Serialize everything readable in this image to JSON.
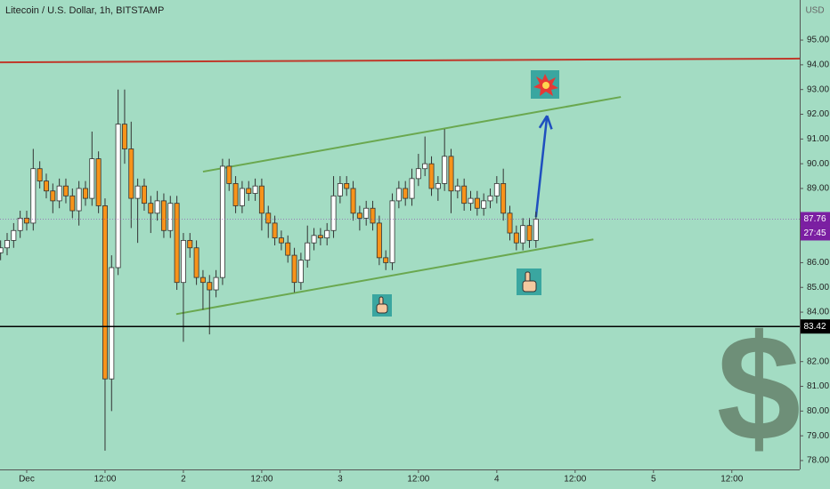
{
  "chart_data": {
    "type": "candlestick",
    "title": "Litecoin / U.S. Dollar, 1h, BITSTAMP",
    "currency": "USD",
    "countdown": "27:45",
    "background": "#a3dcc3",
    "up_color": "#ffffff",
    "down_color": "#f7931a",
    "wick_color": "#333333",
    "x": [
      -4,
      -3,
      -2,
      -1,
      0,
      1,
      2,
      3,
      4,
      5,
      6,
      7,
      8,
      9,
      10,
      11,
      12,
      13,
      14,
      15,
      16,
      17,
      18,
      19,
      20,
      21,
      22,
      23,
      24,
      25,
      26,
      27,
      28,
      29,
      30,
      31,
      32,
      33,
      34,
      35,
      36,
      37,
      38,
      39,
      40,
      41,
      42,
      43,
      44,
      45,
      46,
      47,
      48,
      49,
      50,
      51,
      52,
      53,
      54,
      55,
      56,
      57,
      58,
      59,
      60,
      61,
      62,
      63,
      64,
      65,
      66,
      67,
      68,
      69,
      70,
      71,
      72,
      73,
      74,
      75,
      76,
      77,
      78
    ],
    "open": [
      86.4,
      86.6,
      86.9,
      87.3,
      87.8,
      87.6,
      89.8,
      89.3,
      88.9,
      88.5,
      89.1,
      88.7,
      88.1,
      89.0,
      88.6,
      90.2,
      88.3,
      81.3,
      85.8,
      91.6,
      90.6,
      88.6,
      89.1,
      88.4,
      88.0,
      88.5,
      87.3,
      88.4,
      85.2,
      86.9,
      86.6,
      85.4,
      85.2,
      84.9,
      85.4,
      89.9,
      89.2,
      88.3,
      89.0,
      88.8,
      89.1,
      88.0,
      87.6,
      87.0,
      86.8,
      86.3,
      85.2,
      86.1,
      86.8,
      87.1,
      87.0,
      87.3,
      88.7,
      89.2,
      89.0,
      88.0,
      87.8,
      88.2,
      87.6,
      86.2,
      86.0,
      88.5,
      89.0,
      88.6,
      89.4,
      89.8,
      90.0,
      89.0,
      89.2,
      90.3,
      88.9,
      89.1,
      88.4,
      88.6,
      88.2,
      88.5,
      88.7,
      89.2,
      88.0,
      87.2,
      86.8,
      87.5,
      86.9
    ],
    "high": [
      86.9,
      87.2,
      87.6,
      88.1,
      88.1,
      90.6,
      90.1,
      89.6,
      89.2,
      89.4,
      89.4,
      89.0,
      89.3,
      89.3,
      91.3,
      90.5,
      88.6,
      86.3,
      93.0,
      93.0,
      91.7,
      89.4,
      89.4,
      88.7,
      88.9,
      88.8,
      88.7,
      88.7,
      87.2,
      87.2,
      86.9,
      85.7,
      85.5,
      85.7,
      90.2,
      90.2,
      89.5,
      89.3,
      89.3,
      89.4,
      89.4,
      88.3,
      87.9,
      87.3,
      87.1,
      86.6,
      86.4,
      87.5,
      87.4,
      87.4,
      87.6,
      89.5,
      89.5,
      89.5,
      89.3,
      88.3,
      88.5,
      88.5,
      87.9,
      86.5,
      88.8,
      89.3,
      89.3,
      89.8,
      90.4,
      91.1,
      90.3,
      89.5,
      91.4,
      90.6,
      89.4,
      89.4,
      88.9,
      88.9,
      88.8,
      89.0,
      89.5,
      89.8,
      88.3,
      87.5,
      87.8,
      87.8,
      88.06
    ],
    "low": [
      86.1,
      86.3,
      86.6,
      87.0,
      87.3,
      87.3,
      89.0,
      88.6,
      88.0,
      88.2,
      88.4,
      87.8,
      87.5,
      88.3,
      88.3,
      88.0,
      78.4,
      80.0,
      85.5,
      90.0,
      87.4,
      86.8,
      88.1,
      87.2,
      87.7,
      87.0,
      87.0,
      84.9,
      82.8,
      86.2,
      85.1,
      84.1,
      83.1,
      84.6,
      85.1,
      88.9,
      88.0,
      88.0,
      88.5,
      88.5,
      87.3,
      87.0,
      86.7,
      86.5,
      86.0,
      84.8,
      84.9,
      85.8,
      86.5,
      86.7,
      86.7,
      87.0,
      88.4,
      88.7,
      87.7,
      87.3,
      87.5,
      87.3,
      85.9,
      85.7,
      85.7,
      88.2,
      88.3,
      88.3,
      89.1,
      89.5,
      88.7,
      88.5,
      88.9,
      88.0,
      88.6,
      88.1,
      88.1,
      87.9,
      87.9,
      88.2,
      88.4,
      87.7,
      86.9,
      86.5,
      86.5,
      86.6,
      86.6
    ],
    "close": [
      86.6,
      86.9,
      87.3,
      87.8,
      87.6,
      89.8,
      89.3,
      88.9,
      88.5,
      89.1,
      88.7,
      88.1,
      89.0,
      88.6,
      90.2,
      88.3,
      81.3,
      85.8,
      91.6,
      90.6,
      88.6,
      89.1,
      88.4,
      88.0,
      88.5,
      87.3,
      88.4,
      85.2,
      86.9,
      86.6,
      85.4,
      85.2,
      84.9,
      85.4,
      89.9,
      89.2,
      88.3,
      89.0,
      88.8,
      89.1,
      88.0,
      87.6,
      87.0,
      86.8,
      86.3,
      85.2,
      86.1,
      86.8,
      87.1,
      87.0,
      87.3,
      88.7,
      89.2,
      89.0,
      88.0,
      87.8,
      88.2,
      87.6,
      86.2,
      86.0,
      88.5,
      89.0,
      88.6,
      89.4,
      89.8,
      90.0,
      89.0,
      89.2,
      90.3,
      88.9,
      89.1,
      88.4,
      88.6,
      88.2,
      88.5,
      88.7,
      89.2,
      88.0,
      87.2,
      86.8,
      87.5,
      86.9,
      87.76
    ],
    "xlim": [
      -4.09,
      118.4
    ],
    "xticks": [
      {
        "value": 0,
        "label": "Dec"
      },
      {
        "value": 12,
        "label": "12:00"
      },
      {
        "value": 24,
        "label": "2"
      },
      {
        "value": 36,
        "label": "12:00"
      },
      {
        "value": 48,
        "label": "3"
      },
      {
        "value": 60,
        "label": "12:00"
      },
      {
        "value": 72,
        "label": "4"
      },
      {
        "value": 84,
        "label": "12:00"
      },
      {
        "value": 96,
        "label": "5"
      },
      {
        "value": 108,
        "label": "12:00"
      }
    ],
    "ylim": [
      77.64,
      96.62
    ],
    "yticks": [
      {
        "value": 78,
        "label": "78.00"
      },
      {
        "value": 79,
        "label": "79.00"
      },
      {
        "value": 80,
        "label": "80.00"
      },
      {
        "value": 81,
        "label": "81.00"
      },
      {
        "value": 82,
        "label": "82.00"
      },
      {
        "value": 84,
        "label": "84.00"
      },
      {
        "value": 85,
        "label": "85.00"
      },
      {
        "value": 86,
        "label": "86.00"
      },
      {
        "value": 89,
        "label": "89.00"
      },
      {
        "value": 90,
        "label": "90.00"
      },
      {
        "value": 91,
        "label": "91.00"
      },
      {
        "value": 92,
        "label": "92.00"
      },
      {
        "value": 93,
        "label": "93.00"
      },
      {
        "value": 94,
        "label": "94.00"
      },
      {
        "value": 95,
        "label": "95.00"
      }
    ],
    "hlines": [
      {
        "value": 83.42,
        "color": "#000000"
      }
    ],
    "trend_lines": [
      {
        "x": [
          -4.09,
          118.4
        ],
        "y": [
          94.1,
          94.25
        ],
        "color": "#c0392b",
        "width": 2
      },
      {
        "x": [
          27,
          91
        ],
        "y": [
          89.68,
          92.7
        ],
        "color": "#6aa84f",
        "width": 2
      },
      {
        "x": [
          22.9,
          86.8
        ],
        "y": [
          83.92,
          86.94
        ],
        "color": "#6aa84f",
        "width": 2
      },
      {
        "x": [
          78,
          79.7
        ],
        "y": [
          87.84,
          91.94
        ],
        "color": "#1f4fbf",
        "width": 2.5
      }
    ],
    "watermark": "$"
  }
}
